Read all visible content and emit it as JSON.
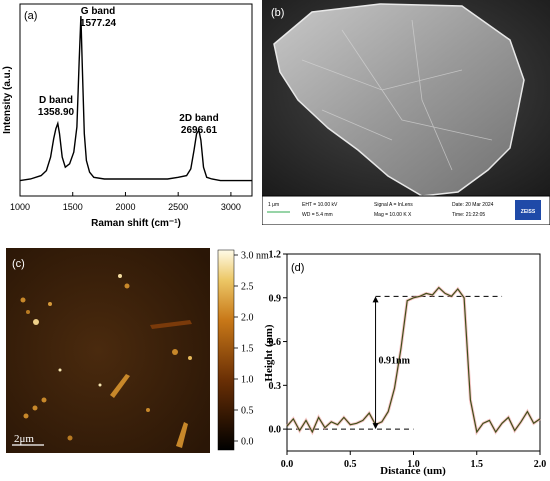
{
  "panels": {
    "a": {
      "label": "(a)"
    },
    "b": {
      "label": "(b)"
    },
    "c": {
      "label": "(c)"
    },
    "d": {
      "label": "(d)"
    }
  },
  "chart_data": [
    {
      "id": "raman",
      "type": "line",
      "xlabel": "Raman shift (cm⁻¹)",
      "ylabel": "Intensity (a.u.)",
      "xlim": [
        1000,
        3200
      ],
      "ylim": [
        0,
        1
      ],
      "xticks": [
        1000,
        1500,
        2000,
        2500,
        3000
      ],
      "yticks_shown": false,
      "grid": false,
      "series": [
        {
          "x": [
            1000,
            1100,
            1200,
            1250,
            1290,
            1320,
            1340,
            1358.9,
            1375,
            1400,
            1430,
            1470,
            1510,
            1540,
            1560,
            1577.24,
            1590,
            1610,
            1630,
            1660,
            1700,
            1800,
            1900,
            2000,
            2100,
            2200,
            2300,
            2400,
            2500,
            2580,
            2620,
            2650,
            2675,
            2696.61,
            2715,
            2740,
            2770,
            2820,
            2900,
            3000,
            3100,
            3200
          ],
          "y": [
            0.02,
            0.03,
            0.05,
            0.08,
            0.16,
            0.27,
            0.33,
            0.36,
            0.3,
            0.16,
            0.1,
            0.12,
            0.19,
            0.34,
            0.72,
            1.0,
            0.72,
            0.3,
            0.14,
            0.07,
            0.04,
            0.03,
            0.03,
            0.03,
            0.03,
            0.03,
            0.03,
            0.03,
            0.04,
            0.05,
            0.09,
            0.2,
            0.3,
            0.32,
            0.26,
            0.1,
            0.04,
            0.03,
            0.02,
            0.02,
            0.02,
            0.02
          ]
        }
      ],
      "annotations": [
        {
          "name": "D band",
          "value": "1358.90"
        },
        {
          "name": "G band",
          "value": "1577.24"
        },
        {
          "name": "2D band",
          "value": "2696.61"
        }
      ]
    },
    {
      "id": "height-profile",
      "type": "line",
      "xlabel": "Distance (um)",
      "ylabel": "Height (nm)",
      "xlim": [
        0.0,
        2.0
      ],
      "ylim": [
        -0.15,
        1.2
      ],
      "xticks": [
        "0.0",
        "0.5",
        "1.0",
        "1.5",
        "2.0"
      ],
      "yticks": [
        "0.0",
        "0.3",
        "0.6",
        "0.9",
        "1.2"
      ],
      "grid": false,
      "series": [
        {
          "x": [
            0.0,
            0.05,
            0.1,
            0.15,
            0.2,
            0.25,
            0.3,
            0.35,
            0.4,
            0.45,
            0.5,
            0.55,
            0.6,
            0.65,
            0.7,
            0.75,
            0.8,
            0.85,
            0.9,
            0.95,
            1.0,
            1.05,
            1.1,
            1.15,
            1.2,
            1.25,
            1.3,
            1.35,
            1.4,
            1.45,
            1.5,
            1.55,
            1.6,
            1.65,
            1.7,
            1.75,
            1.8,
            1.85,
            1.9,
            1.95,
            2.0
          ],
          "y": [
            0.02,
            0.07,
            -0.01,
            0.06,
            -0.02,
            0.08,
            0.01,
            0.05,
            0.03,
            0.08,
            0.03,
            0.04,
            0.06,
            0.11,
            0.03,
            0.05,
            0.12,
            0.28,
            0.55,
            0.88,
            0.9,
            0.91,
            0.93,
            0.92,
            0.97,
            0.93,
            0.91,
            0.96,
            0.9,
            0.2,
            -0.02,
            0.04,
            0.06,
            -0.02,
            0.04,
            0.08,
            -0.01,
            0.05,
            0.12,
            0.04,
            0.07
          ]
        }
      ],
      "reference_lines": [
        0.0,
        0.91
      ],
      "annotations": [
        {
          "name": "step-height",
          "text": "0.91nm"
        }
      ]
    }
  ],
  "sem": {
    "scale": "1 μm",
    "eht": "EHT = 10.00 kV",
    "wd": "WD = 5.4 mm",
    "signal": "Signal A = InLens",
    "mag": "Mag = 10.00 K X",
    "date": "Date: 20 Mar 2024",
    "time": "Time: 21:22:05",
    "logo": "ZEISS"
  },
  "afm": {
    "scalebar": "2μm",
    "colorbar_ticks": [
      "3.0 nm",
      "2.5",
      "2.0",
      "1.5",
      "1.0",
      "0.5",
      "0.0"
    ]
  }
}
